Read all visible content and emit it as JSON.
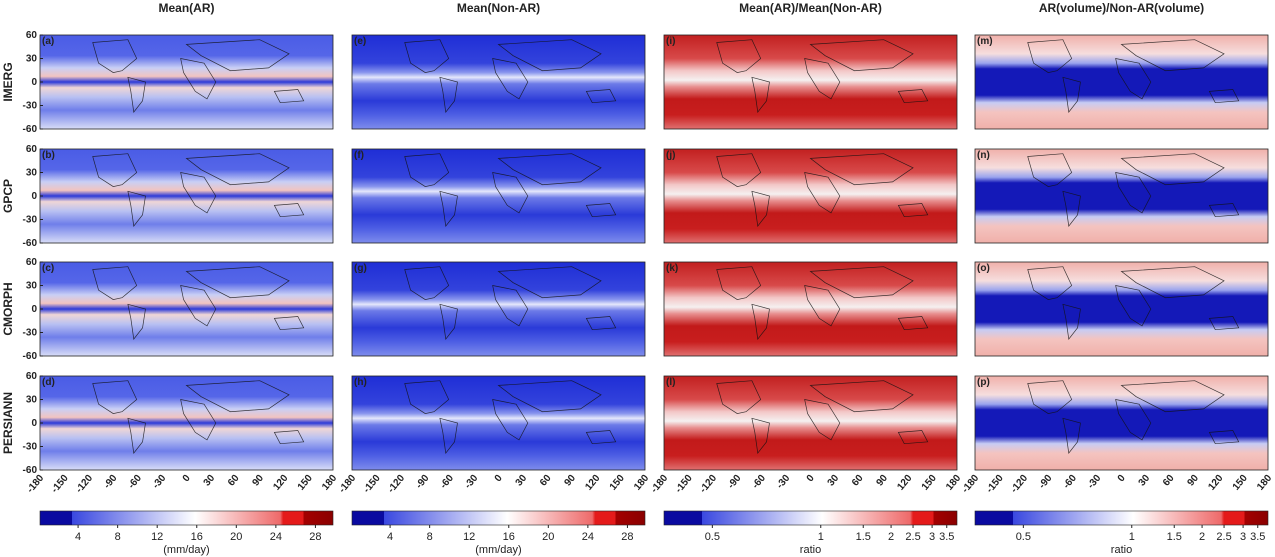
{
  "columns": [
    {
      "title": "Mean(AR)",
      "panels": [
        "(a)",
        "(b)",
        "(c)",
        "(d)"
      ]
    },
    {
      "title": "Mean(Non-AR)",
      "panels": [
        "(e)",
        "(f)",
        "(g)",
        "(h)"
      ]
    },
    {
      "title": "Mean(AR)/Mean(Non-AR)",
      "panels": [
        "(i)",
        "(j)",
        "(k)",
        "(l)"
      ]
    },
    {
      "title": "AR(volume)/Non-AR(volume)",
      "panels": [
        "(m)",
        "(n)",
        "(o)",
        "(p)"
      ]
    }
  ],
  "rows": [
    "IMERG",
    "GPCP",
    "CMORPH",
    "PERSIANN"
  ],
  "yticks": [
    60,
    30,
    0,
    -30,
    -60
  ],
  "xticks": [
    -180,
    -150,
    -120,
    -90,
    -60,
    -30,
    0,
    30,
    60,
    90,
    120,
    150,
    180
  ],
  "colorbars": [
    {
      "ticks": [
        4,
        8,
        12,
        16,
        20,
        24,
        28
      ],
      "unit": "(mm/day)"
    },
    {
      "ticks": [
        4,
        8,
        12,
        16,
        20,
        24,
        28
      ],
      "unit": "(mm/day)"
    },
    {
      "ticks": [
        0.5,
        1,
        1.5,
        2,
        2.5,
        3,
        3.5
      ],
      "unit": "ratio"
    },
    {
      "ticks": [
        0.5,
        1,
        1.5,
        2,
        2.5,
        3,
        3.5
      ],
      "unit": "ratio"
    }
  ]
}
